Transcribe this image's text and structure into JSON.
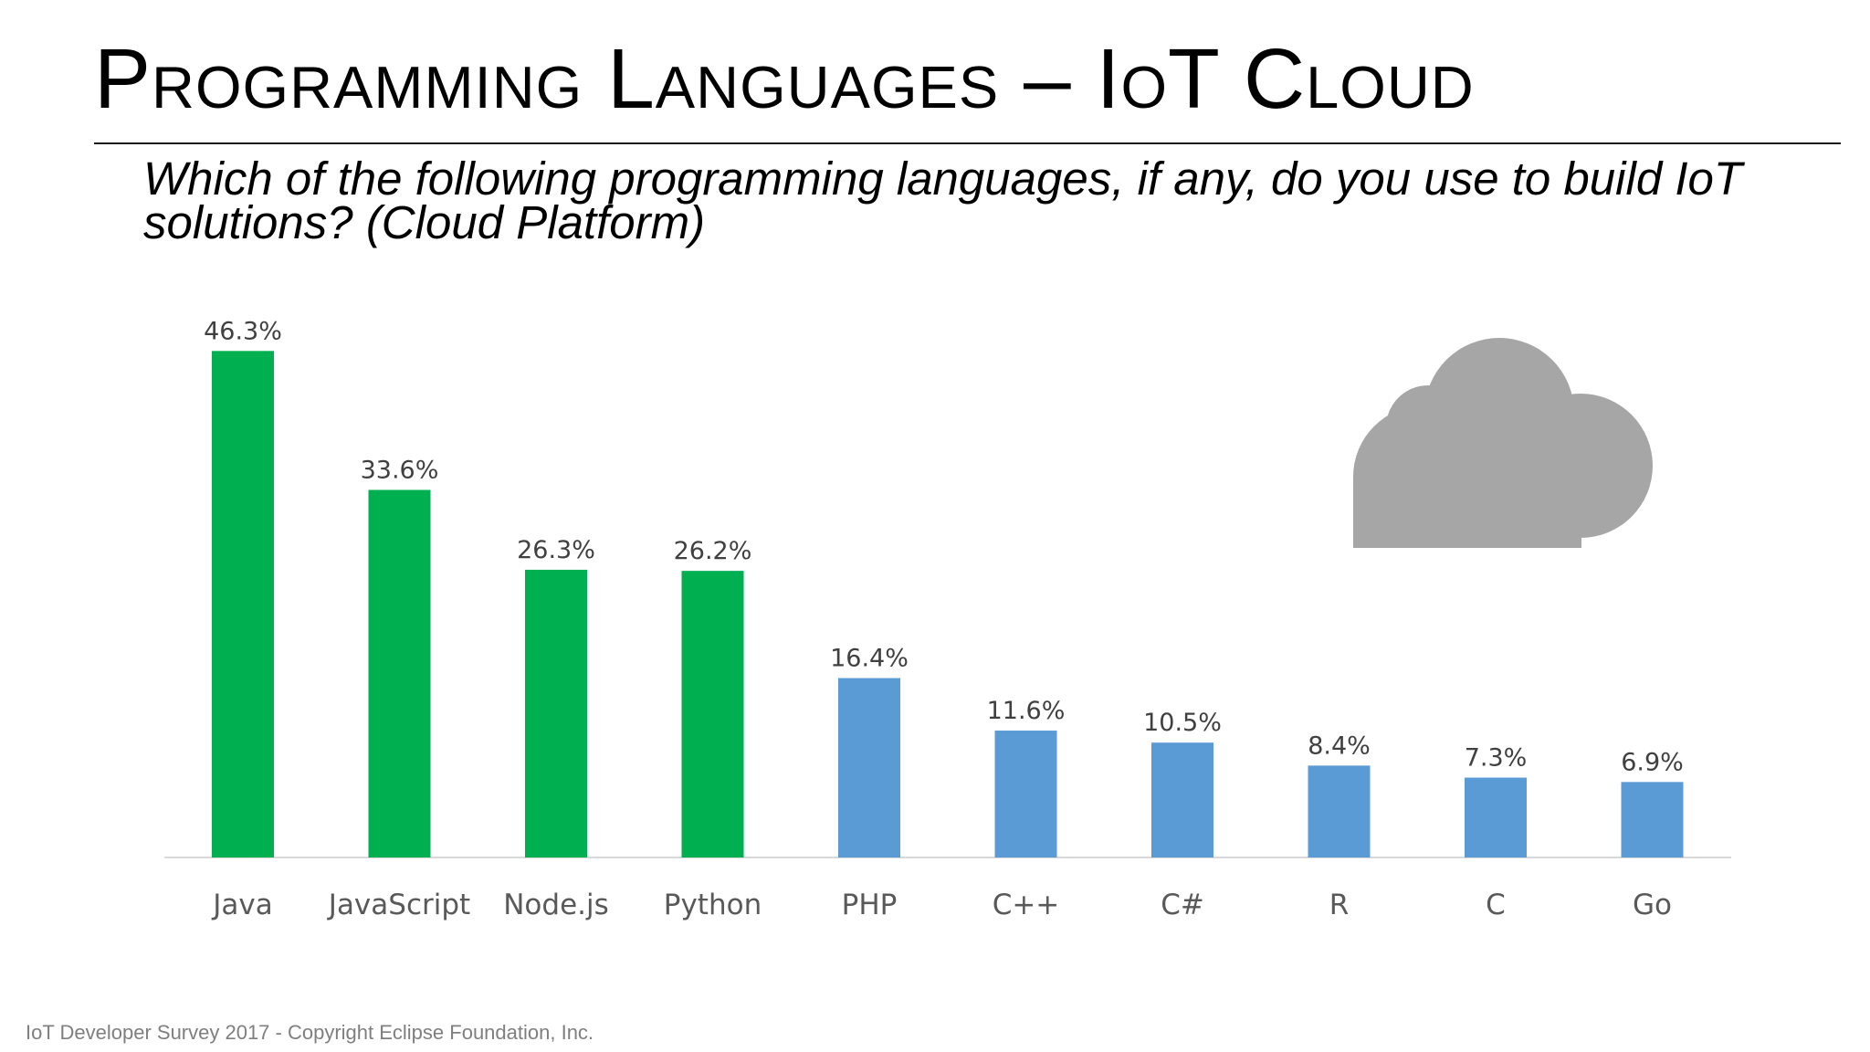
{
  "slide": {
    "title": "Programming Languages – IoT Cloud",
    "subtitle": "Which of the following programming languages, if any, do you use to build IoT solutions? (Cloud Platform)",
    "footer": "IoT Developer Survey 2017 - Copyright Eclipse Foundation, Inc."
  },
  "icon": {
    "name": "cloud-icon",
    "color": "#a6a6a6"
  },
  "chart_data": {
    "type": "bar",
    "title": "",
    "xlabel": "",
    "ylabel": "",
    "categories": [
      "Java",
      "JavaScript",
      "Node.js",
      "Python",
      "PHP",
      "C++",
      "C#",
      "R",
      "C",
      "Go"
    ],
    "values": [
      46.3,
      33.6,
      26.3,
      26.2,
      16.4,
      11.6,
      10.5,
      8.4,
      7.3,
      6.9
    ],
    "data_labels": [
      "46.3%",
      "33.6%",
      "26.3%",
      "26.2%",
      "16.4%",
      "11.6%",
      "10.5%",
      "8.4%",
      "7.3%",
      "6.9%"
    ],
    "bar_colors": [
      "#00b050",
      "#00b050",
      "#00b050",
      "#00b050",
      "#5b9bd5",
      "#5b9bd5",
      "#5b9bd5",
      "#5b9bd5",
      "#5b9bd5",
      "#5b9bd5"
    ],
    "ylim": [
      0,
      50
    ],
    "grid": false,
    "legend": "none"
  }
}
